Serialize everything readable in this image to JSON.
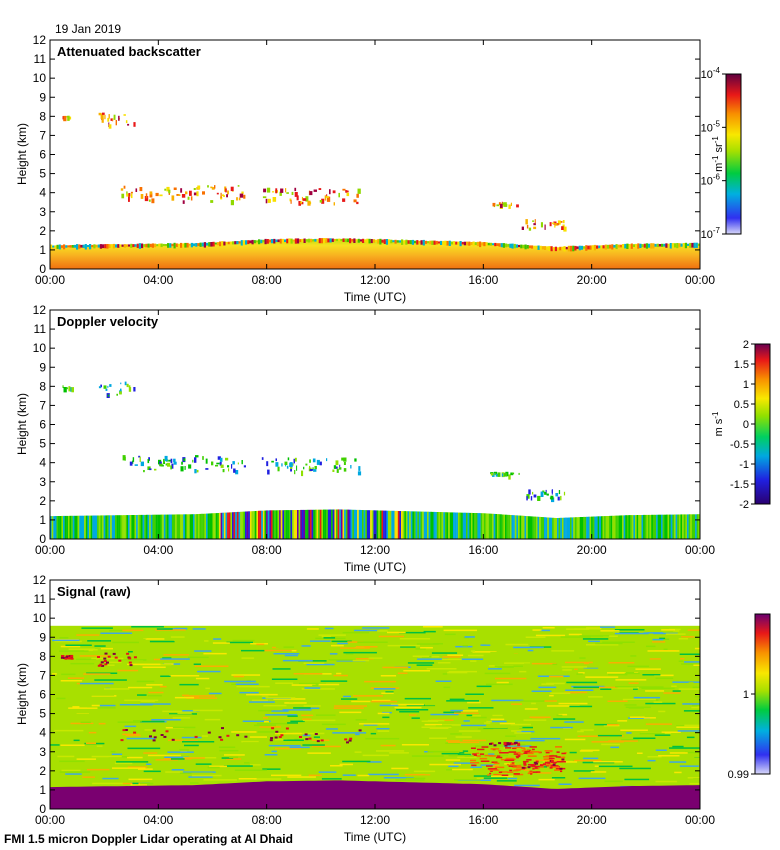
{
  "date": "19 Jan 2019",
  "footer": "FMI 1.5 micron Doppler Lidar operating at Al Dhaid",
  "chart_data": [
    {
      "type": "heatmap",
      "title": "Attenuated backscatter",
      "xlabel": "Time (UTC)",
      "ylabel": "Height (km)",
      "xticks": [
        "00:00",
        "04:00",
        "08:00",
        "12:00",
        "16:00",
        "20:00",
        "00:00"
      ],
      "xlim_hours": [
        0,
        24
      ],
      "ylim": [
        0,
        12
      ],
      "yticks": [
        "0",
        "1",
        "2",
        "3",
        "4",
        "5",
        "6",
        "7",
        "8",
        "9",
        "10",
        "11",
        "12"
      ],
      "colorbar": {
        "scale": "log",
        "range": [
          "1e-7",
          "1e-4"
        ],
        "ticks": [
          {
            "base": "10",
            "exp": "-4"
          },
          {
            "base": "10",
            "exp": "-5"
          },
          {
            "base": "10",
            "exp": "-6"
          },
          {
            "base": "10",
            "exp": "-7"
          }
        ],
        "unit_parts": [
          {
            "t": "m"
          },
          {
            "t": "-1",
            "sup": true
          },
          {
            "t": " sr"
          },
          {
            "t": "-1",
            "sup": true
          }
        ]
      },
      "boundary_layer": {
        "top_km": [
          1.2,
          1.25,
          1.3,
          1.5,
          1.55,
          1.45,
          1.35,
          1.1,
          1.25,
          1.3
        ]
      },
      "cloud_features": [
        {
          "start_h": 0.4,
          "end_h": 0.8,
          "height_km": 8.0,
          "thickness_km": 0.15
        },
        {
          "start_h": 1.7,
          "end_h": 3.1,
          "height_km": 7.9,
          "thickness_km": 0.7
        },
        {
          "start_h": 2.6,
          "end_h": 7.2,
          "height_km": 4.0,
          "thickness_km": 0.8
        },
        {
          "start_h": 7.8,
          "end_h": 11.4,
          "height_km": 3.9,
          "thickness_km": 0.8
        },
        {
          "start_h": 16.2,
          "end_h": 17.3,
          "height_km": 3.45,
          "thickness_km": 0.15
        },
        {
          "start_h": 17.4,
          "end_h": 19.0,
          "height_km": 2.4,
          "thickness_km": 0.5
        }
      ]
    },
    {
      "type": "heatmap",
      "title": "Doppler velocity",
      "xlabel": "Time (UTC)",
      "ylabel": "Height (km)",
      "xticks": [
        "00:00",
        "04:00",
        "08:00",
        "12:00",
        "16:00",
        "20:00",
        "00:00"
      ],
      "xlim_hours": [
        0,
        24
      ],
      "ylim": [
        0,
        12
      ],
      "yticks": [
        "0",
        "1",
        "2",
        "3",
        "4",
        "5",
        "6",
        "7",
        "8",
        "9",
        "10",
        "11",
        "12"
      ],
      "colorbar": {
        "scale": "linear",
        "range": [
          -2,
          2
        ],
        "ticks": [
          "2",
          "1.5",
          "1",
          "0.5",
          "0",
          "-0.5",
          "-1",
          "-1.5",
          "-2"
        ],
        "unit_parts": [
          {
            "t": "m s"
          },
          {
            "t": "-1",
            "sup": true
          }
        ]
      }
    },
    {
      "type": "heatmap",
      "title": "Signal (raw)",
      "xlabel": "Time (UTC)",
      "ylabel": "Height (km)",
      "xticks": [
        "00:00",
        "04:00",
        "08:00",
        "12:00",
        "16:00",
        "20:00",
        "00:00"
      ],
      "xlim_hours": [
        0,
        24
      ],
      "ylim": [
        0,
        12
      ],
      "yticks": [
        "0",
        "1",
        "2",
        "3",
        "4",
        "5",
        "6",
        "7",
        "8",
        "9",
        "10",
        "11",
        "12"
      ],
      "signal_top_km": 9.6,
      "colorbar": {
        "scale": "linear",
        "range": [
          0.99,
          1.01
        ],
        "ticks": [
          "1",
          "0.99"
        ],
        "unit_parts": []
      }
    }
  ]
}
